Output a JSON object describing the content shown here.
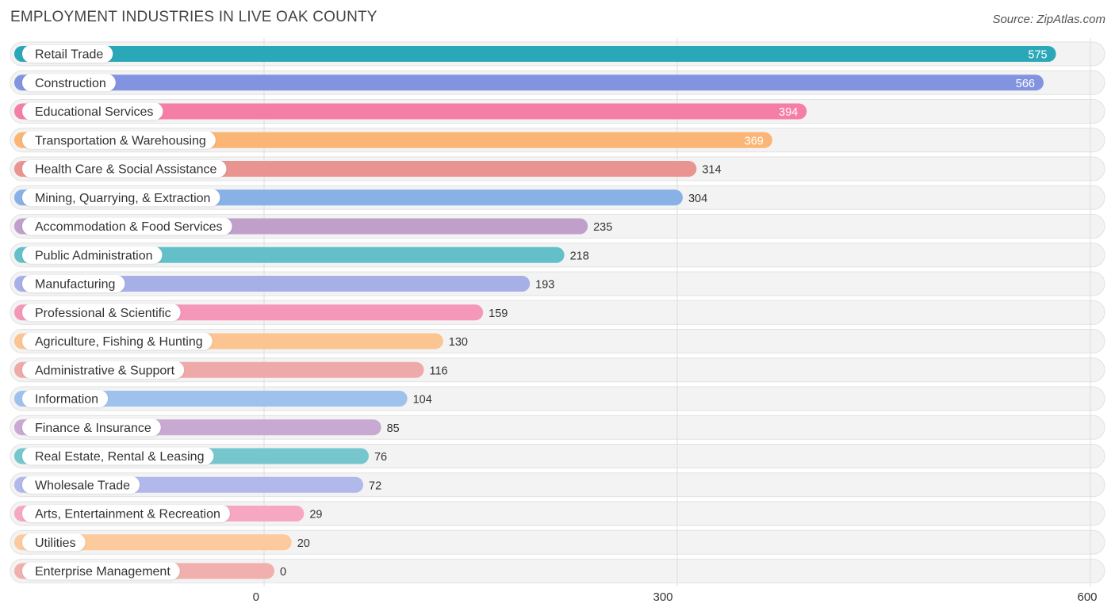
{
  "header": {
    "title": "EMPLOYMENT INDUSTRIES IN LIVE OAK COUNTY",
    "source": "Source: ZipAtlas.com"
  },
  "chart_data": {
    "type": "bar",
    "orientation": "horizontal",
    "title": "EMPLOYMENT INDUSTRIES IN LIVE OAK COUNTY",
    "xlabel": "",
    "ylabel": "",
    "xlim": [
      0,
      600
    ],
    "ticks": [
      0,
      300,
      600
    ],
    "grid": true,
    "categories": [
      "Retail Trade",
      "Construction",
      "Educational Services",
      "Transportation & Warehousing",
      "Health Care & Social Assistance",
      "Mining, Quarrying, & Extraction",
      "Accommodation & Food Services",
      "Public Administration",
      "Manufacturing",
      "Professional & Scientific",
      "Agriculture, Fishing & Hunting",
      "Administrative & Support",
      "Information",
      "Finance & Insurance",
      "Real Estate, Rental & Leasing",
      "Wholesale Trade",
      "Arts, Entertainment & Recreation",
      "Utilities",
      "Enterprise Management"
    ],
    "values": [
      575,
      566,
      394,
      369,
      314,
      304,
      235,
      218,
      193,
      159,
      130,
      116,
      104,
      85,
      76,
      72,
      29,
      20,
      0
    ],
    "colors": [
      "#2aa8b8",
      "#8294e0",
      "#f57ea6",
      "#fbb574",
      "#e99490",
      "#88b1e6",
      "#c09fca",
      "#63c0c9",
      "#a6afe6",
      "#f597b8",
      "#fbc490",
      "#eeaaa8",
      "#9fc2ec",
      "#c8a9d2",
      "#76c7cd",
      "#b1b8ea",
      "#f6a8c2",
      "#fcca9d",
      "#f1b0ae"
    ]
  }
}
